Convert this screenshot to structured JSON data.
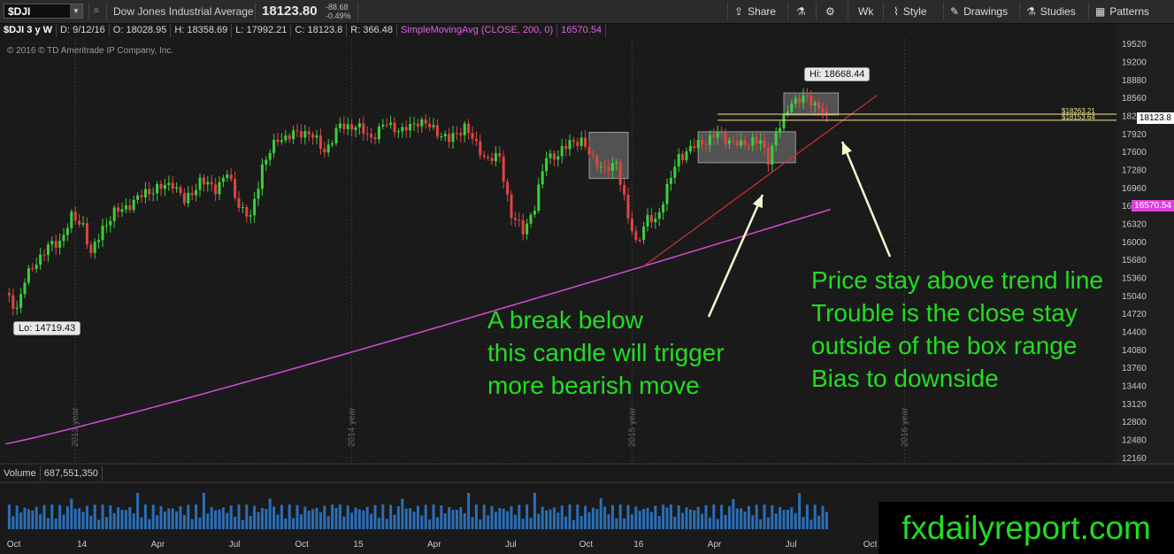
{
  "toolbar": {
    "symbol": "$DJI",
    "description": "Dow Jones Industrial Average",
    "last": "18123.80",
    "change": "-88.68",
    "change_pct": "-0.49%",
    "buttons": {
      "share": "Share",
      "period": "Wk",
      "style": "Style",
      "drawings": "Drawings",
      "studies": "Studies",
      "patterns": "Patterns"
    },
    "icons": [
      "share-icon",
      "flask-icon",
      "gear-icon",
      "style-icon",
      "drawings-icon",
      "studies-icon",
      "patterns-icon"
    ]
  },
  "infobar": {
    "title": "$DJI 3 y W",
    "date": "D: 9/12/16",
    "open": "O: 18028.95",
    "high": "H: 18358.69",
    "low": "L: 17992.21",
    "close": "C: 18123.8",
    "range": "R: 366.48",
    "study": "SimpleMovingAvg (CLOSE, 200, 0)",
    "study_value": "16570.54"
  },
  "copyright": "© 2016 © TD Ameritrade IP Company, Inc.",
  "volume": {
    "label": "Volume",
    "value": "687,551,350"
  },
  "callouts": {
    "low": "Lo: 14719.43",
    "high": "Hi: 18668.44"
  },
  "price_tags": {
    "last": "18123.8",
    "sma": "16570.54"
  },
  "hlines_labels": [
    "$18263.21",
    "$18153.64"
  ],
  "annotations": {
    "left": "A break below\nthis candle will trigger\nmore bearish move",
    "right": "Price stay above trend line\nTrouble is the close stay\noutside of the box range\nBias to downside"
  },
  "watermark": "fxdailyreport.com",
  "colors": {
    "up": "#3dcf3d",
    "down": "#e04444",
    "sma": "#d24cd2",
    "trendline": "#d03030",
    "annotation": "#22dd22",
    "box": "#7a7a7a"
  },
  "chart_data": {
    "type": "candlestick",
    "y_ticks": [
      19520,
      19200,
      18880,
      18560,
      18240,
      17920,
      17600,
      17280,
      16960,
      16640,
      16320,
      16000,
      15680,
      15360,
      15040,
      14720,
      14400,
      14080,
      13760,
      13440,
      13120,
      12800,
      12480,
      12160
    ],
    "x_tick_labels": [
      "Oct",
      "14",
      "Apr",
      "Jul",
      "Oct",
      "15",
      "Apr",
      "Jul",
      "Oct",
      "16",
      "Apr",
      "Jul",
      "Oct"
    ],
    "year_labels": [
      "2013 year",
      "2014 year",
      "2015 year",
      "2016 year"
    ],
    "ylim": [
      12080,
      19600
    ],
    "close_anchors": [
      [
        0,
        15050
      ],
      [
        3,
        14820
      ],
      [
        5,
        15300
      ],
      [
        8,
        15650
      ],
      [
        11,
        15900
      ],
      [
        14,
        16000
      ],
      [
        17,
        16420
      ],
      [
        20,
        16300
      ],
      [
        22,
        15750
      ],
      [
        25,
        16250
      ],
      [
        28,
        16500
      ],
      [
        33,
        16700
      ],
      [
        36,
        16880
      ],
      [
        40,
        16950
      ],
      [
        43,
        17050
      ],
      [
        46,
        16700
      ],
      [
        50,
        17070
      ],
      [
        54,
        16950
      ],
      [
        57,
        17200
      ],
      [
        60,
        16650
      ],
      [
        63,
        16400
      ],
      [
        66,
        17350
      ],
      [
        70,
        17820
      ],
      [
        74,
        17900
      ],
      [
        78,
        17950
      ],
      [
        82,
        17600
      ],
      [
        86,
        18050
      ],
      [
        90,
        18050
      ],
      [
        94,
        17850
      ],
      [
        98,
        18100
      ],
      [
        102,
        17950
      ],
      [
        106,
        18150
      ],
      [
        110,
        18000
      ],
      [
        114,
        17800
      ],
      [
        118,
        18050
      ],
      [
        121,
        17700
      ],
      [
        124,
        17450
      ],
      [
        127,
        17500
      ],
      [
        130,
        16450
      ],
      [
        133,
        16200
      ],
      [
        136,
        16600
      ],
      [
        139,
        17550
      ],
      [
        142,
        17500
      ],
      [
        145,
        17800
      ],
      [
        148,
        17750
      ],
      [
        151,
        17500
      ],
      [
        154,
        17230
      ],
      [
        157,
        17430
      ],
      [
        160,
        16400
      ],
      [
        162,
        15988
      ],
      [
        165,
        16400
      ],
      [
        167,
        16350
      ],
      [
        170,
        16950
      ],
      [
        173,
        17500
      ],
      [
        176,
        17650
      ],
      [
        180,
        17800
      ],
      [
        183,
        17900
      ],
      [
        186,
        17800
      ],
      [
        189,
        17700
      ],
      [
        192,
        17820
      ],
      [
        194,
        17750
      ],
      [
        196,
        17450
      ],
      [
        198,
        17950
      ],
      [
        200,
        18150
      ],
      [
        202,
        18500
      ],
      [
        205,
        18550
      ],
      [
        208,
        18450
      ],
      [
        210,
        18350
      ],
      [
        211,
        18124
      ]
    ],
    "sma200_start": 12400,
    "sma200_end": 16570.54,
    "low_point": 14719.43,
    "high_point": 18668.44,
    "hlines": [
      18263.21,
      18153.64
    ],
    "boxes": [
      {
        "from": 150,
        "to": 160,
        "low": 17120,
        "high": 17940
      },
      {
        "from": 178,
        "to": 203,
        "low": 17400,
        "high": 17950
      },
      {
        "from": 200,
        "to": 214,
        "low": 18250,
        "high": 18640
      }
    ],
    "trendline": [
      [
        164,
        15560
      ],
      [
        224,
        18600
      ]
    ]
  }
}
